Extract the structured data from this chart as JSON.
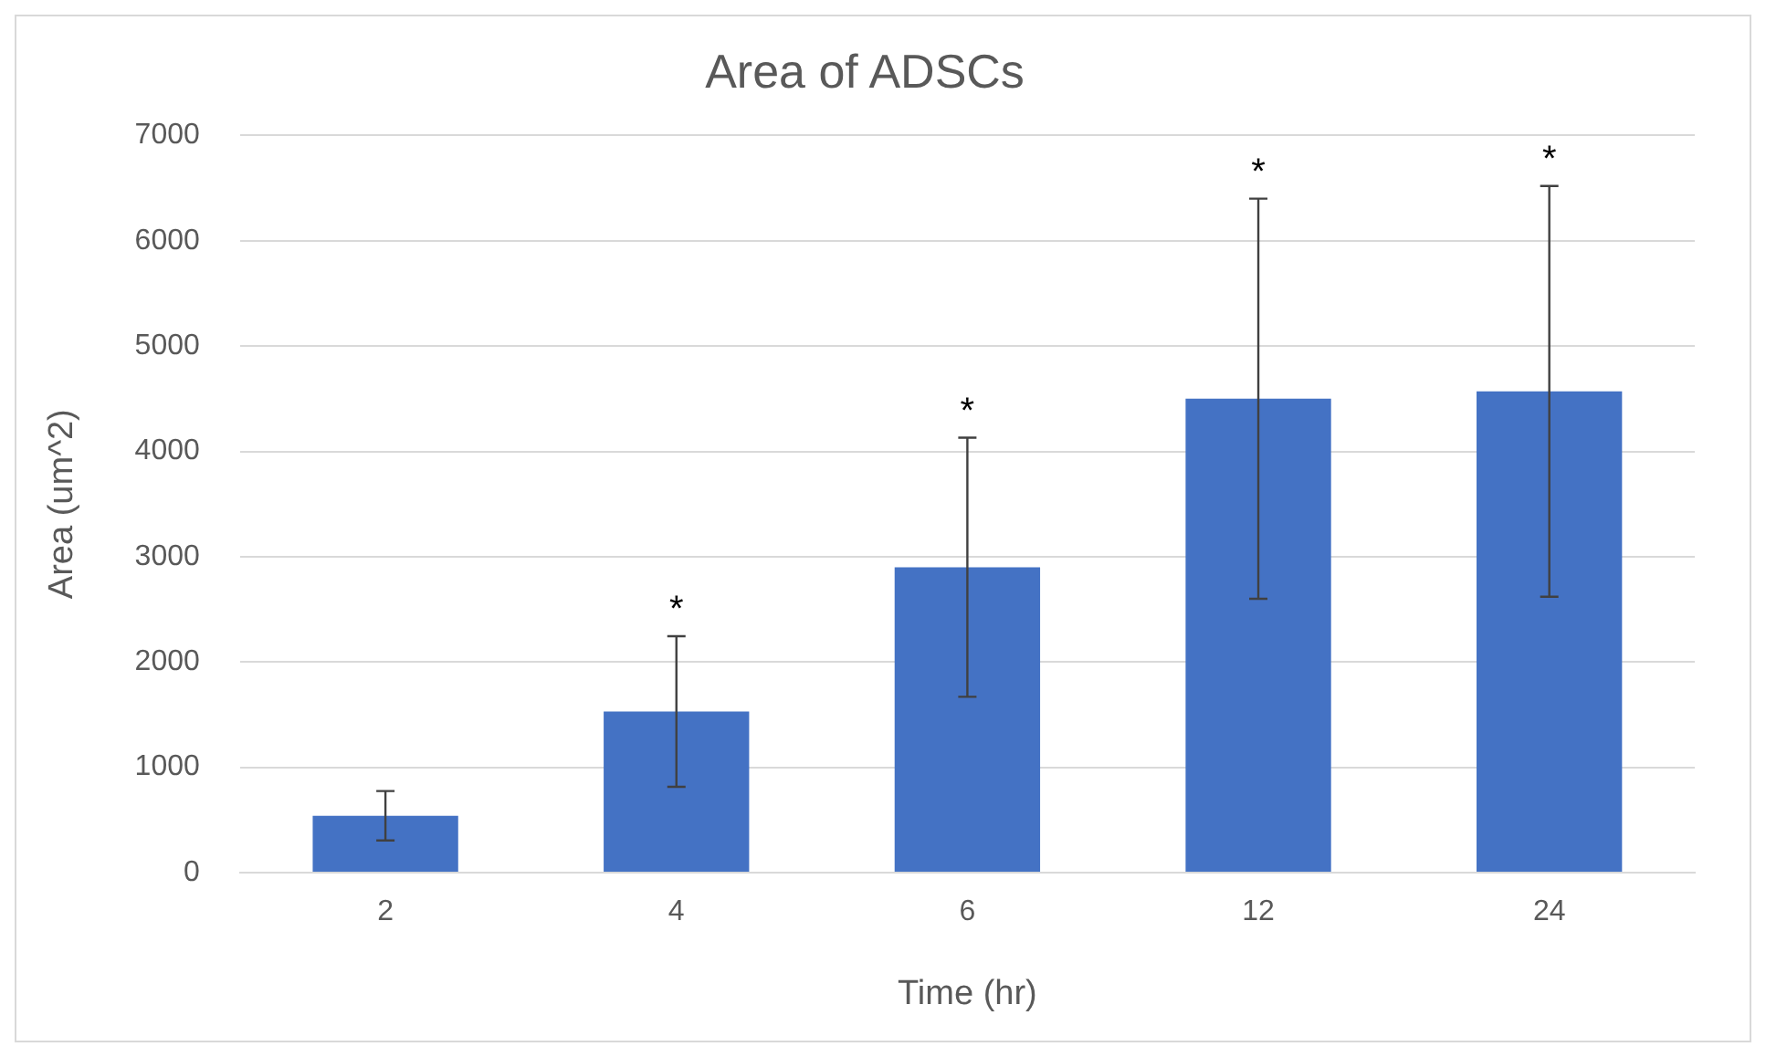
{
  "chart_data": {
    "type": "bar",
    "title": "Area of ADSCs",
    "xlabel": "Time (hr)",
    "ylabel": "Area (um^2)",
    "categories": [
      "2",
      "4",
      "6",
      "12",
      "24"
    ],
    "values": [
      540,
      1530,
      2900,
      4500,
      4570
    ],
    "errors": [
      235,
      715,
      1230,
      1900,
      1950
    ],
    "color": "#4472c4",
    "ylim": [
      0,
      7000
    ],
    "yticks": [
      0,
      1000,
      2000,
      3000,
      4000,
      5000,
      6000,
      7000
    ],
    "grid": "y",
    "legend": false,
    "annotations": [
      {
        "text": "*",
        "x": "4",
        "y": 2245
      },
      {
        "text": "*",
        "x": "6",
        "y": 4130
      },
      {
        "text": "*",
        "x": "12",
        "y": 6400
      },
      {
        "text": "*",
        "x": "24",
        "y": 6520
      }
    ]
  }
}
